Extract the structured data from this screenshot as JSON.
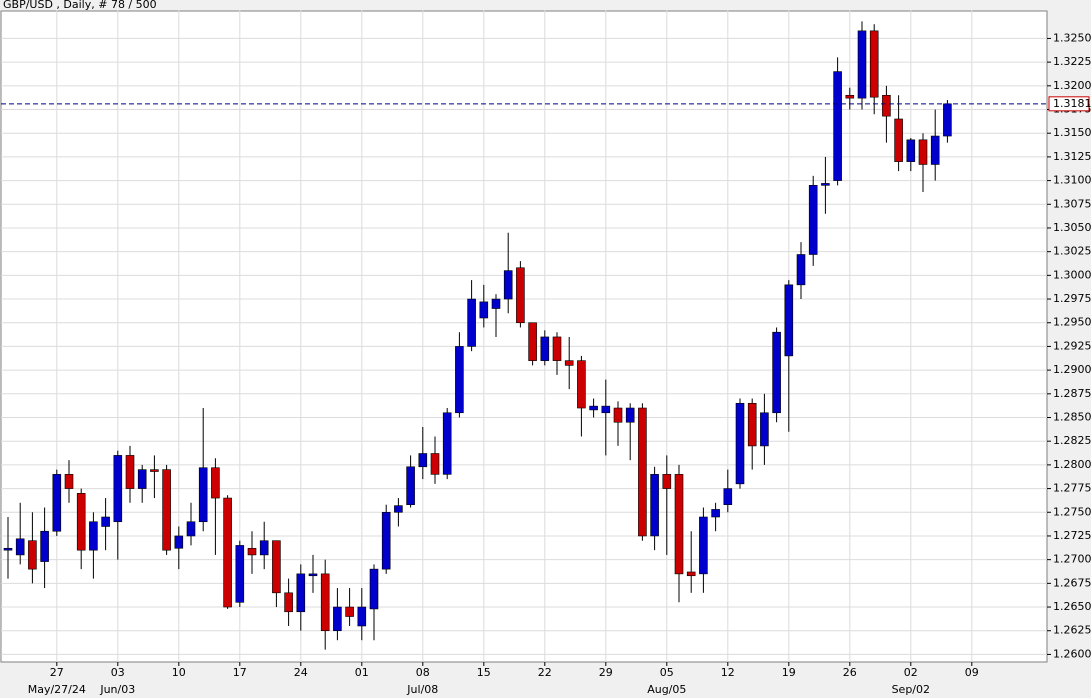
{
  "chart_data": {
    "type": "candlestick",
    "title": "GBP/USD , Daily, # 78 / 500",
    "up_color": "#0000cc",
    "down_color": "#cc0000",
    "grid": true,
    "categories": [
      null,
      null,
      null,
      null,
      "27",
      null,
      null,
      null,
      null,
      "03",
      null,
      null,
      null,
      null,
      "10",
      null,
      null,
      null,
      null,
      "17",
      null,
      null,
      null,
      null,
      "24",
      null,
      null,
      null,
      null,
      "01",
      null,
      null,
      null,
      null,
      "08",
      null,
      null,
      null,
      null,
      "15",
      null,
      null,
      null,
      null,
      "22",
      null,
      null,
      null,
      null,
      "29",
      null,
      null,
      null,
      null,
      "05",
      null,
      null,
      null,
      null,
      "12",
      null,
      null,
      null,
      null,
      "19",
      null,
      null,
      null,
      null,
      "26",
      null,
      null,
      null,
      null,
      "02",
      null,
      null,
      null,
      null,
      "09"
    ],
    "month_labels": [
      null,
      null,
      null,
      null,
      "May/27/24",
      null,
      null,
      null,
      null,
      "Jun/03",
      null,
      null,
      null,
      null,
      null,
      null,
      null,
      null,
      null,
      null,
      null,
      null,
      null,
      null,
      null,
      null,
      null,
      null,
      null,
      null,
      null,
      null,
      null,
      null,
      "Jul/08",
      null,
      null,
      null,
      null,
      null,
      null,
      null,
      null,
      null,
      null,
      null,
      null,
      null,
      null,
      null,
      null,
      null,
      null,
      null,
      "Aug/05",
      null,
      null,
      null,
      null,
      null,
      null,
      null,
      null,
      null,
      null,
      null,
      null,
      null,
      null,
      null,
      null,
      null,
      null,
      null,
      "Sep/02",
      null,
      null,
      null,
      null,
      null
    ],
    "open": [
      1.271,
      1.2705,
      1.272,
      1.2698,
      1.273,
      1.279,
      1.277,
      1.271,
      1.2735,
      1.274,
      1.281,
      1.2775,
      1.2795,
      1.2795,
      1.2712,
      1.2725,
      1.274,
      1.2797,
      1.2765,
      1.2655,
      1.2712,
      1.2705,
      1.272,
      1.2665,
      1.2645,
      1.2683,
      1.2685,
      1.2625,
      1.265,
      1.263,
      1.2648,
      1.269,
      1.275,
      1.2758,
      1.2798,
      1.2812,
      1.279,
      1.2855,
      1.2925,
      1.2955,
      1.2965,
      1.2975,
      1.3008,
      1.295,
      1.291,
      1.2935,
      1.291,
      1.291,
      1.2858,
      1.2855,
      1.286,
      1.2845,
      1.286,
      1.2725,
      1.279,
      1.279,
      1.2687,
      1.2685,
      1.2745,
      1.2758,
      1.278,
      1.2865,
      1.282,
      1.2855,
      1.2915,
      1.299,
      1.3022,
      1.3095,
      1.31,
      1.319,
      1.3187,
      1.3258,
      1.319,
      1.3165,
      1.312,
      1.3143,
      1.3117,
      1.3147,
      null,
      null
    ],
    "high": [
      1.2745,
      1.276,
      1.275,
      1.2755,
      1.2795,
      1.2805,
      1.2775,
      1.275,
      1.2765,
      1.2815,
      1.282,
      1.28,
      1.281,
      1.28,
      1.2735,
      1.276,
      1.286,
      1.2807,
      1.2768,
      1.272,
      1.273,
      1.274,
      1.272,
      1.268,
      1.2695,
      1.2705,
      1.27,
      1.267,
      1.267,
      1.267,
      1.2695,
      1.2758,
      1.2765,
      1.281,
      1.284,
      1.283,
      1.286,
      1.294,
      1.2995,
      1.299,
      1.298,
      1.3045,
      1.3015,
      1.295,
      1.2942,
      1.294,
      1.2935,
      1.2915,
      1.287,
      1.289,
      1.2867,
      1.2865,
      1.2865,
      1.2798,
      1.281,
      1.28,
      1.273,
      1.2755,
      1.276,
      1.2795,
      1.287,
      1.287,
      1.2875,
      1.2945,
      1.2995,
      1.3035,
      1.3105,
      1.3125,
      1.323,
      1.3198,
      1.3268,
      1.3265,
      1.32,
      1.319,
      1.3145,
      1.315,
      1.3175,
      1.3185,
      null,
      null
    ],
    "low": [
      1.268,
      1.2695,
      1.2675,
      1.267,
      1.2725,
      1.276,
      1.269,
      1.268,
      1.271,
      1.27,
      1.276,
      1.276,
      1.2765,
      1.2705,
      1.269,
      1.2715,
      1.273,
      1.2705,
      1.2648,
      1.265,
      1.2685,
      1.269,
      1.265,
      1.263,
      1.2625,
      1.2665,
      1.2605,
      1.2615,
      1.263,
      1.2615,
      1.2615,
      1.2685,
      1.2735,
      1.2755,
      1.2785,
      1.278,
      1.2785,
      1.285,
      1.292,
      1.2945,
      1.2935,
      1.296,
      1.2945,
      1.2905,
      1.2905,
      1.2895,
      1.288,
      1.283,
      1.285,
      1.281,
      1.282,
      1.2805,
      1.272,
      1.271,
      1.2705,
      1.2655,
      1.2665,
      1.2665,
      1.273,
      1.275,
      1.2775,
      1.2795,
      1.28,
      1.2845,
      1.2835,
      1.2975,
      1.301,
      1.3065,
      1.3095,
      1.3175,
      1.3175,
      1.317,
      1.314,
      1.311,
      1.311,
      1.3088,
      1.31,
      1.314,
      null,
      null
    ],
    "close": [
      1.2712,
      1.2722,
      1.269,
      1.273,
      1.279,
      1.2775,
      1.271,
      1.274,
      1.2745,
      1.281,
      1.2775,
      1.2795,
      1.2793,
      1.271,
      1.2725,
      1.274,
      1.2797,
      1.2765,
      1.265,
      1.2715,
      1.2705,
      1.272,
      1.2665,
      1.2645,
      1.2685,
      1.2685,
      1.2625,
      1.265,
      1.264,
      1.265,
      1.269,
      1.275,
      1.2757,
      1.2798,
      1.2812,
      1.279,
      1.2855,
      1.2925,
      1.2975,
      1.2972,
      1.2975,
      1.3005,
      1.295,
      1.291,
      1.2935,
      1.291,
      1.2905,
      1.286,
      1.2862,
      1.2862,
      1.2845,
      1.286,
      1.2725,
      1.279,
      1.2775,
      1.2685,
      1.2683,
      1.2745,
      1.2753,
      1.2775,
      1.2865,
      1.282,
      1.2855,
      1.294,
      1.299,
      1.3022,
      1.3095,
      1.3097,
      1.3215,
      1.3187,
      1.3258,
      1.3188,
      1.3168,
      1.312,
      1.3143,
      1.3117,
      1.3147,
      1.3181,
      null,
      null
    ],
    "last_price": 1.3181,
    "last_price_label": "1.3181",
    "ylim": [
      1.2592,
      1.328
    ],
    "yticks": [
      {
        "value": 1.26,
        "label": "1.2600"
      },
      {
        "value": 1.2625,
        "label": "1.2625"
      },
      {
        "value": 1.265,
        "label": "1.2650"
      },
      {
        "value": 1.2675,
        "label": "1.2675"
      },
      {
        "value": 1.27,
        "label": "1.2700"
      },
      {
        "value": 1.2725,
        "label": "1.2725"
      },
      {
        "value": 1.275,
        "label": "1.2750"
      },
      {
        "value": 1.2775,
        "label": "1.2775"
      },
      {
        "value": 1.28,
        "label": "1.2800"
      },
      {
        "value": 1.2825,
        "label": "1.2825"
      },
      {
        "value": 1.285,
        "label": "1.2850"
      },
      {
        "value": 1.2875,
        "label": "1.2875"
      },
      {
        "value": 1.29,
        "label": "1.2900"
      },
      {
        "value": 1.2925,
        "label": "1.2925"
      },
      {
        "value": 1.295,
        "label": "1.2950"
      },
      {
        "value": 1.2975,
        "label": "1.2975"
      },
      {
        "value": 1.3,
        "label": "1.3000"
      },
      {
        "value": 1.3025,
        "label": "1.3025"
      },
      {
        "value": 1.305,
        "label": "1.3050"
      },
      {
        "value": 1.3075,
        "label": "1.3075"
      },
      {
        "value": 1.31,
        "label": "1.3100"
      },
      {
        "value": 1.3125,
        "label": "1.3125"
      },
      {
        "value": 1.315,
        "label": "1.3150"
      },
      {
        "value": 1.3175,
        "label": "1.3175"
      },
      {
        "value": 1.32,
        "label": "1.3200"
      },
      {
        "value": 1.3225,
        "label": "1.3225"
      },
      {
        "value": 1.325,
        "label": "1.3250"
      }
    ]
  }
}
